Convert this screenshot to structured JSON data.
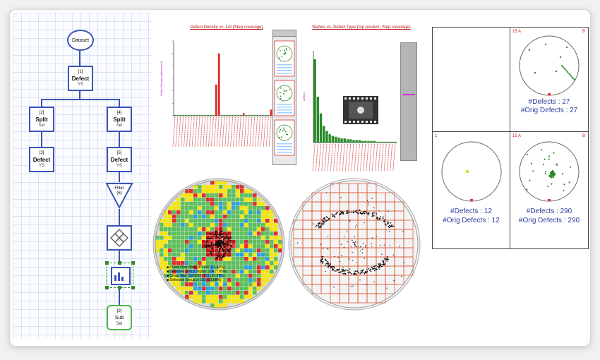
{
  "colors": {
    "flow_border": "#3a55b4",
    "flow_accent": "#4fb54a",
    "bar_red": "#e02020",
    "bar_green": "#2a8a2a",
    "label_blue": "#2a3d9c",
    "title_red": "#b11111"
  },
  "flowchart": {
    "dataset": "Dataset",
    "n1": {
      "idx": "[1]",
      "title": "Defect",
      "sub": "YS"
    },
    "n2": {
      "idx": "[2]",
      "title": "Split",
      "sub": "Sel"
    },
    "n3": {
      "idx": "[3]",
      "title": "Defect",
      "sub": "YS"
    },
    "n4": {
      "idx": "[4]",
      "title": "Split",
      "sub": "Sel"
    },
    "n5": {
      "idx": "[5]",
      "title": "Defect",
      "sub": "YS"
    },
    "filter": {
      "title": "Filter",
      "sub": "(6)"
    },
    "n9": {
      "idx": "[9]",
      "title": "Sub",
      "sub": "Sel"
    }
  },
  "chart1": {
    "title": "Defect Density vs. Lot (Step coverage)"
  },
  "chart2": {
    "title": "Wafers vs. Defect Type (top product, Step coverage)"
  },
  "wafer_legend": [
    "Cross Over Stop(.90: 447 (11.44%)",
    "Defective Group Signal: 174 (7.95%)",
    "Clean Wait Dot(990): 151 (15.99%)",
    "Defective Group 3: 163 (13.88%)"
  ],
  "wafer_panels": [
    {
      "defects": "",
      "orig": "",
      "corner_left": "",
      "corner_right": ""
    },
    {
      "defects": "#Defects : 27",
      "orig": "#Orig Defects : 27",
      "corner_left": "15 A",
      "corner_right": "B"
    },
    {
      "defects": "#Defects : 12",
      "orig": "#Orig Defects : 12",
      "corner_left": "1",
      "corner_right": ""
    },
    {
      "defects": "#Defects : 290",
      "orig": "#Orig Defects : 290",
      "corner_left": "15 A",
      "corner_right": "B"
    }
  ],
  "chart_data": [
    {
      "type": "bar",
      "title": "Defect Density vs. Lot (Step coverage)",
      "ylabel": "Defect Density (defect/cm2)",
      "series": [
        {
          "values": [
            0,
            0,
            0,
            0,
            0,
            0,
            0,
            0,
            0,
            0,
            0,
            0,
            0,
            0,
            0,
            2.5,
            5.0,
            0,
            0,
            0,
            0,
            0,
            0,
            0,
            0,
            0.2,
            0,
            0,
            0,
            0,
            0,
            0,
            0,
            0,
            0,
            0.5
          ]
        }
      ],
      "ylim": [
        0,
        6
      ]
    },
    {
      "type": "bar",
      "title": "Wafers vs. Defect Type (top product, Step coverage)",
      "ylabel": "Wafers",
      "series": [
        {
          "values": [
            100,
            55,
            35,
            20,
            14,
            10,
            8,
            7,
            6,
            5,
            5,
            4,
            4,
            3,
            3,
            3,
            2,
            2,
            2,
            2,
            2,
            1,
            1,
            1,
            1,
            1,
            1,
            1
          ]
        }
      ],
      "ylim": [
        0,
        110
      ]
    }
  ]
}
